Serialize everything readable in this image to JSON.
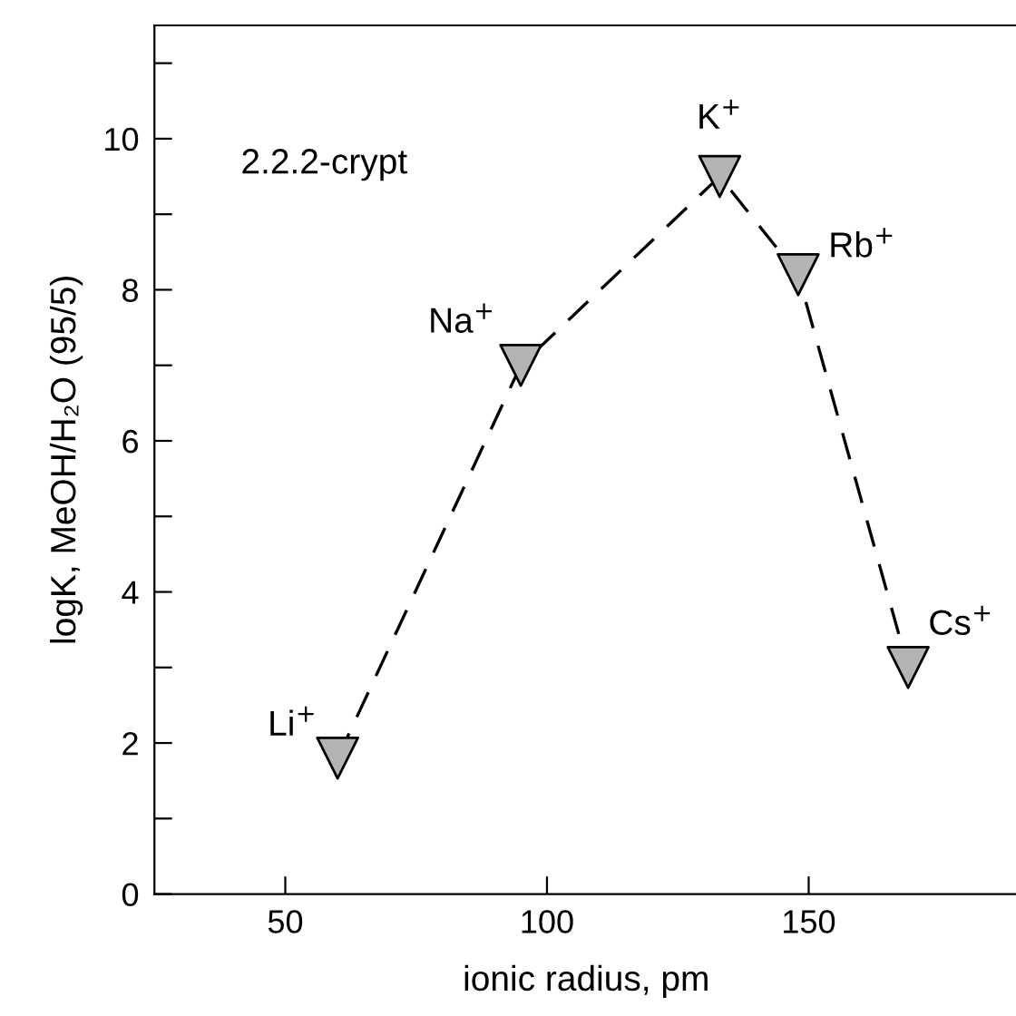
{
  "chart_data": {
    "type": "line",
    "xlabel": "ionic radius, pm",
    "ylabel": "logK, MeOH/H₂O (95/5)",
    "x": [
      60,
      95,
      133,
      148,
      169
    ],
    "series": [
      {
        "color": "#b4b4b4",
        "values": [
          1.8,
          7.0,
          9.5,
          8.2,
          3.0
        ]
      }
    ],
    "marker": "triangle",
    "line_style": "dashed",
    "grid": false,
    "legend": false,
    "xlim": [
      25,
      190
    ],
    "ylim": [
      0,
      11.5
    ],
    "xticks": [
      50,
      100,
      150
    ],
    "yticks": [
      0,
      {
        "value": 1,
        "label": null
      },
      2,
      {
        "value": 3,
        "label": null
      },
      4,
      {
        "value": 5,
        "label": null
      },
      6,
      {
        "value": 7,
        "label": null
      },
      8,
      {
        "value": 9,
        "label": null
      },
      10,
      {
        "value": 11,
        "label": null
      }
    ],
    "annotations": [
      {
        "text": "Li$^{+}$",
        "x": 60,
        "y": 1.8
      },
      {
        "text": "Na$^{+}$",
        "x": 95,
        "y": 7.0
      },
      {
        "text": "K$^{+}$",
        "x": 133,
        "y": 9.5
      },
      {
        "text": "Rb$^{+}$",
        "x": 148,
        "y": 8.2
      },
      {
        "text": "Cs$^{+}$",
        "x": 169,
        "y": 3.0
      },
      "2.2.2-crypt"
    ]
  }
}
